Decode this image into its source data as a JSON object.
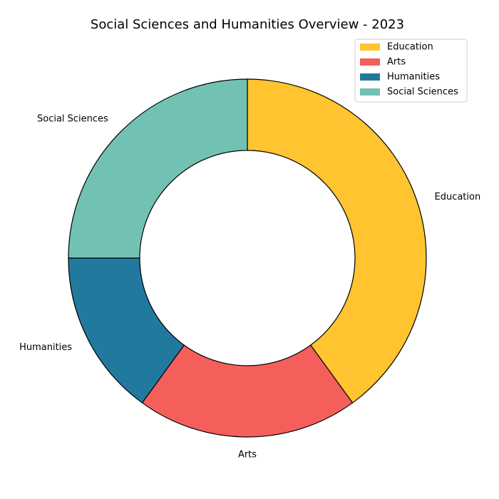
{
  "chart_data": {
    "type": "pie",
    "style": "donut",
    "title": "Social Sciences and Humanities Overview - 2023",
    "categories": [
      "Education",
      "Arts",
      "Humanities",
      "Social Sciences"
    ],
    "values": [
      40,
      20,
      15,
      25
    ],
    "colors": [
      "#FFC430",
      "#F45F5C",
      "#22799E",
      "#72C2B4"
    ],
    "start_angle_deg": 90,
    "direction": "clockwise",
    "legend": {
      "position": "top-right",
      "entries": [
        "Education",
        "Arts",
        "Humanities",
        "Social Sciences"
      ]
    }
  }
}
